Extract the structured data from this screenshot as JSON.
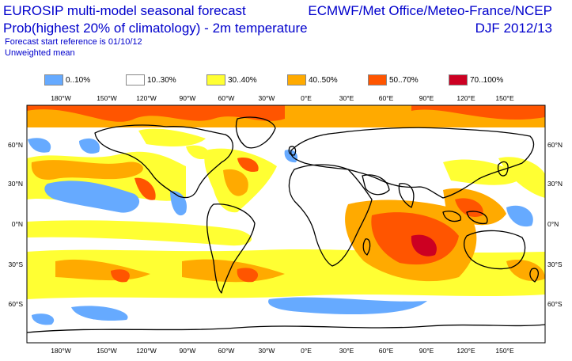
{
  "header": {
    "title_line1": "EUROSIP multi-model seasonal forecast",
    "title_line2": "Prob(highest 20% of climatology) - 2m temperature",
    "line3": "Forecast start reference is 01/10/12",
    "line4": "Unweighted mean",
    "right_line1": "ECMWF/Met Office/Meteo-France/NCEP",
    "right_line2": "DJF 2012/13"
  },
  "legend": [
    {
      "label": "0..10%",
      "color": "#66aaff"
    },
    {
      "label": "10..30%",
      "color": "#ffffff"
    },
    {
      "label": "30..40%",
      "color": "#ffff33"
    },
    {
      "label": "40..50%",
      "color": "#ffaa00"
    },
    {
      "label": "50..70%",
      "color": "#ff5500"
    },
    {
      "label": "70..100%",
      "color": "#cc0022"
    }
  ],
  "axes": {
    "lon_labels": [
      "180°W",
      "150°W",
      "120°W",
      "90°W",
      "60°W",
      "30°W",
      "0°E",
      "30°E",
      "60°E",
      "90°E",
      "120°E",
      "150°E"
    ],
    "lat_labels": [
      "60°N",
      "30°N",
      "0°N",
      "30°S",
      "60°S"
    ]
  }
}
